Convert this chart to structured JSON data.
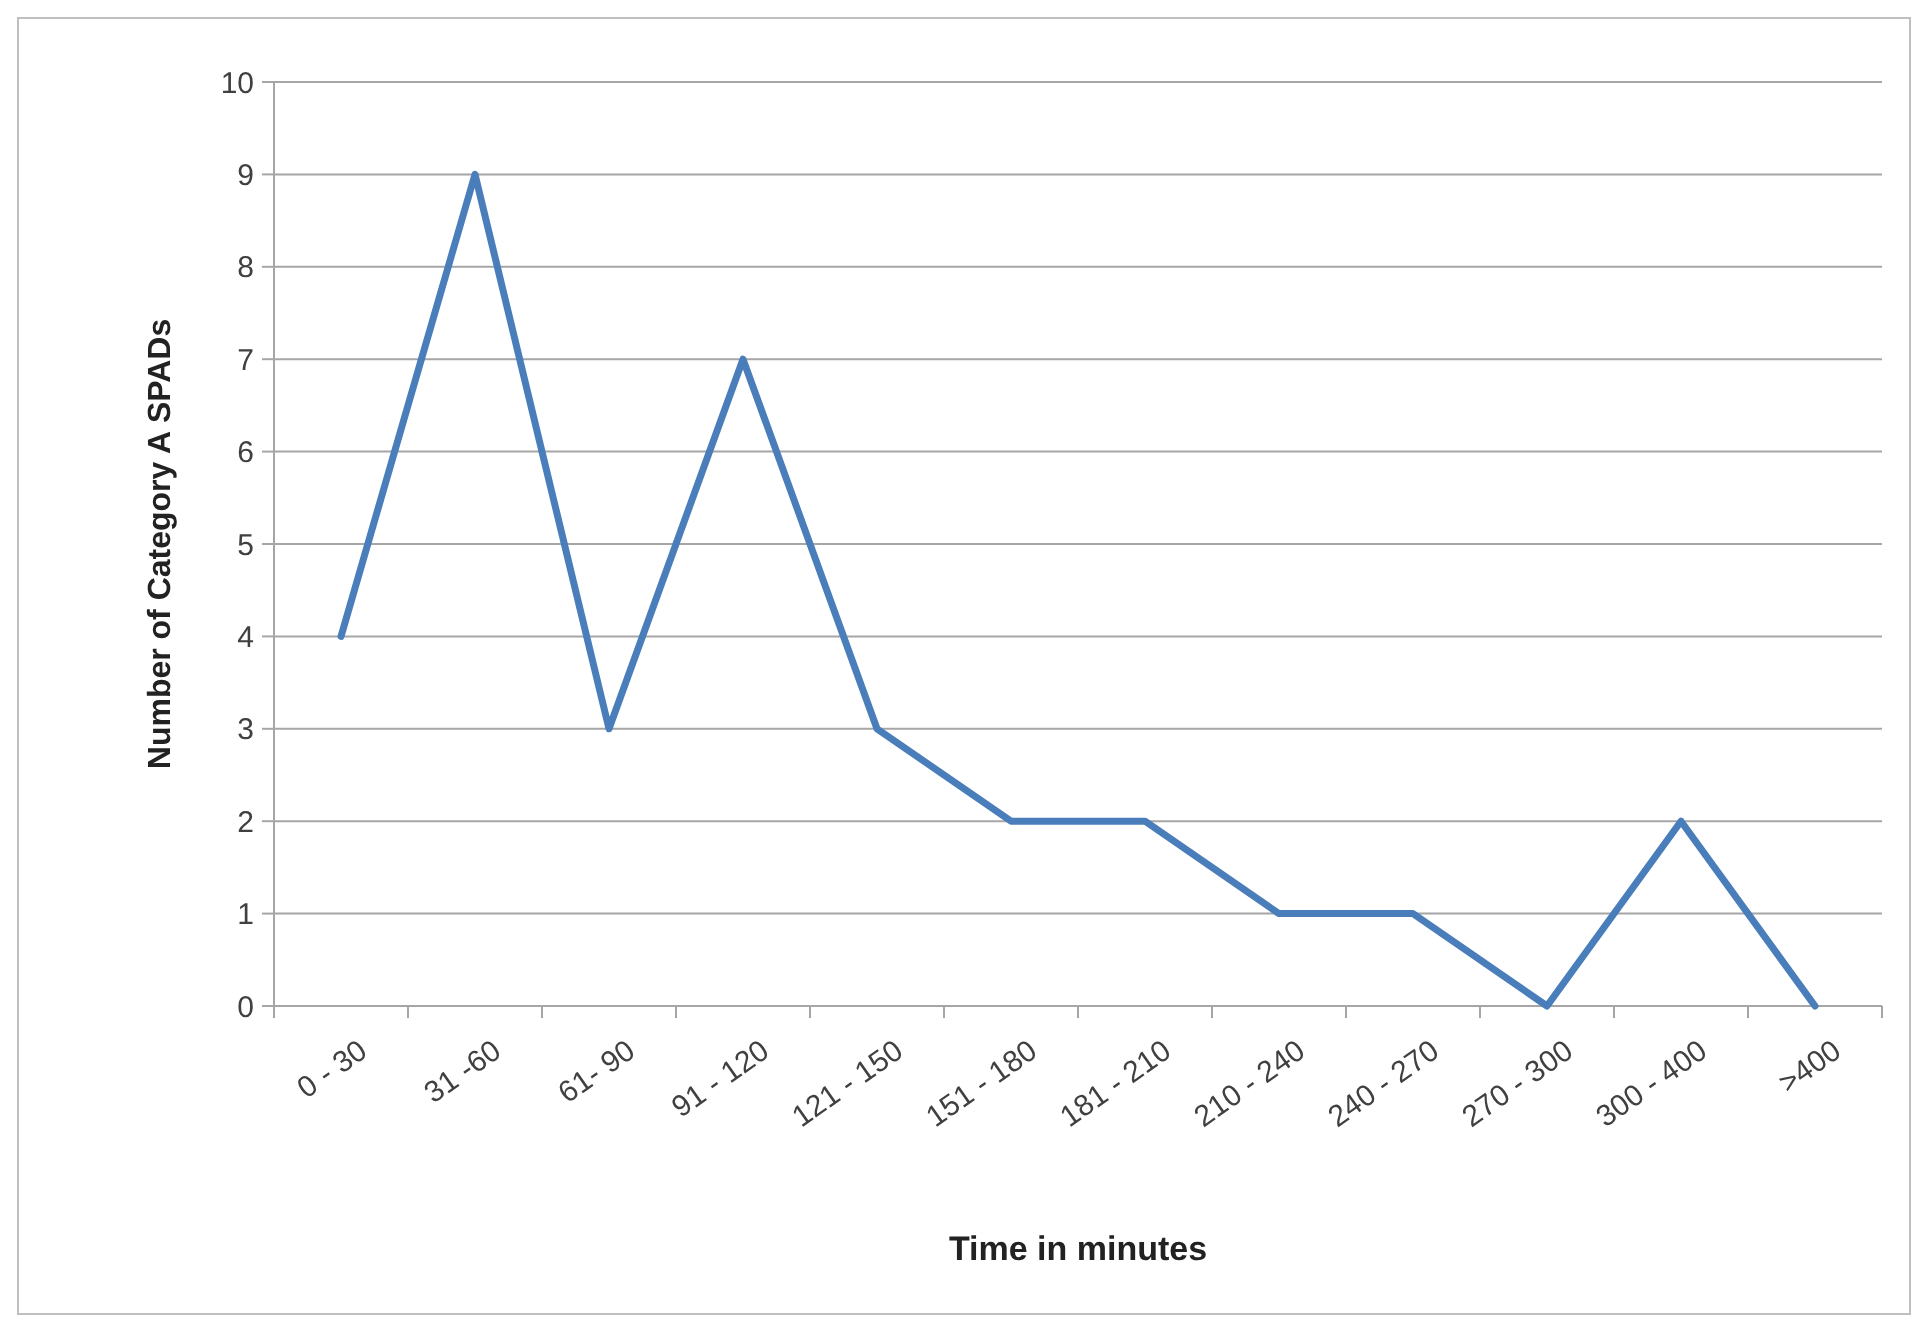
{
  "chart_data": {
    "type": "line",
    "xlabel": "Time in minutes",
    "ylabel": "Number of Category A SPADs",
    "categories": [
      "0 - 30",
      "31 -60",
      "61- 90",
      "91 - 120",
      "121 - 150",
      "151 - 180",
      "181 - 210",
      "210 - 240",
      "240 - 270",
      "270 - 300",
      "300 - 400",
      ">400"
    ],
    "series": [
      {
        "color": "#4a7ebb",
        "values": [
          4,
          9,
          3,
          7,
          3,
          2,
          2,
          1,
          1,
          0,
          2,
          0
        ]
      }
    ],
    "ylim": [
      0,
      10
    ],
    "yticks": [
      0,
      1,
      2,
      3,
      4,
      5,
      6,
      7,
      8,
      9,
      10
    ],
    "grid": "y",
    "marker": "none",
    "line_style": "solid"
  }
}
